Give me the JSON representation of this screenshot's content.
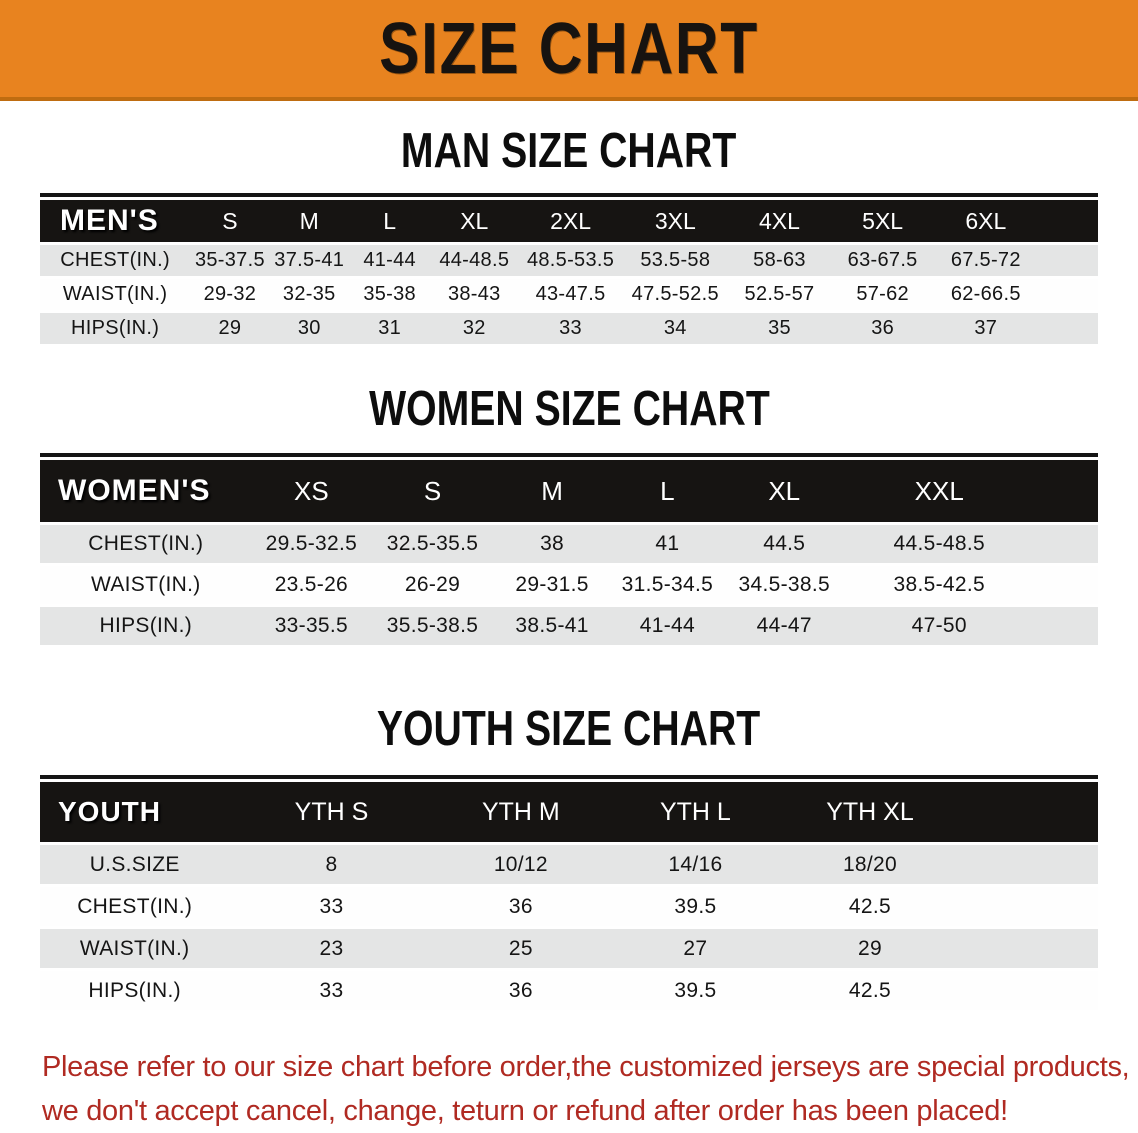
{
  "banner": {
    "title": "SIZE CHART"
  },
  "sections": [
    {
      "heading": "MAN SIZE CHART",
      "table": {
        "label": "MEN'S",
        "columns": [
          "S",
          "M",
          "L",
          "XL",
          "2XL",
          "3XL",
          "4XL",
          "5XL",
          "6XL"
        ],
        "rows": [
          {
            "label": "CHEST(IN.)",
            "values": [
              "35-37.5",
              "37.5-41",
              "41-44",
              "44-48.5",
              "48.5-53.5",
              "53.5-58",
              "58-63",
              "63-67.5",
              "67.5-72"
            ]
          },
          {
            "label": "WAIST(IN.)",
            "values": [
              "29-32",
              "32-35",
              "35-38",
              "38-43",
              "43-47.5",
              "47.5-52.5",
              "52.5-57",
              "57-62",
              "62-66.5"
            ]
          },
          {
            "label": "HIPS(IN.)",
            "values": [
              "29",
              "30",
              "31",
              "32",
              "33",
              "34",
              "35",
              "36",
              "37"
            ]
          }
        ]
      }
    },
    {
      "heading": "WOMEN SIZE CHART",
      "table": {
        "label": "WOMEN'S",
        "columns": [
          "XS",
          "S",
          "M",
          "L",
          "XL",
          "XXL"
        ],
        "rows": [
          {
            "label": "CHEST(IN.)",
            "values": [
              "29.5-32.5",
              "32.5-35.5",
              "38",
              "41",
              "44.5",
              "44.5-48.5"
            ]
          },
          {
            "label": "WAIST(IN.)",
            "values": [
              "23.5-26",
              "26-29",
              "29-31.5",
              "31.5-34.5",
              "34.5-38.5",
              "38.5-42.5"
            ]
          },
          {
            "label": "HIPS(IN.)",
            "values": [
              "33-35.5",
              "35.5-38.5",
              "38.5-41",
              "41-44",
              "44-47",
              "47-50"
            ]
          }
        ]
      }
    },
    {
      "heading": "YOUTH SIZE CHART",
      "table": {
        "label": "YOUTH",
        "columns": [
          "YTH S",
          "YTH M",
          "YTH L",
          "YTH XL"
        ],
        "rows": [
          {
            "label": "U.S.SIZE",
            "values": [
              "8",
              "10/12",
              "14/16",
              "18/20"
            ]
          },
          {
            "label": "CHEST(IN.)",
            "values": [
              "33",
              "36",
              "39.5",
              "42.5"
            ]
          },
          {
            "label": "WAIST(IN.)",
            "values": [
              "23",
              "25",
              "27",
              "29"
            ]
          },
          {
            "label": "HIPS(IN.)",
            "values": [
              "33",
              "36",
              "39.5",
              "42.5"
            ]
          }
        ]
      }
    }
  ],
  "disclaimer": {
    "line1": "Please refer to our size chart before order,the customized jerseys are special products,",
    "line2": "we don't accept cancel, change, teturn or refund after order has been placed!"
  },
  "colors": {
    "banner-orange": "#e8831f",
    "banner-orange-dark": "#bf6c10",
    "bar-black": "#161412",
    "row-gray": "#e4e5e5",
    "row-white": "#fefefe",
    "disclaimer-red": "#b02a22"
  }
}
